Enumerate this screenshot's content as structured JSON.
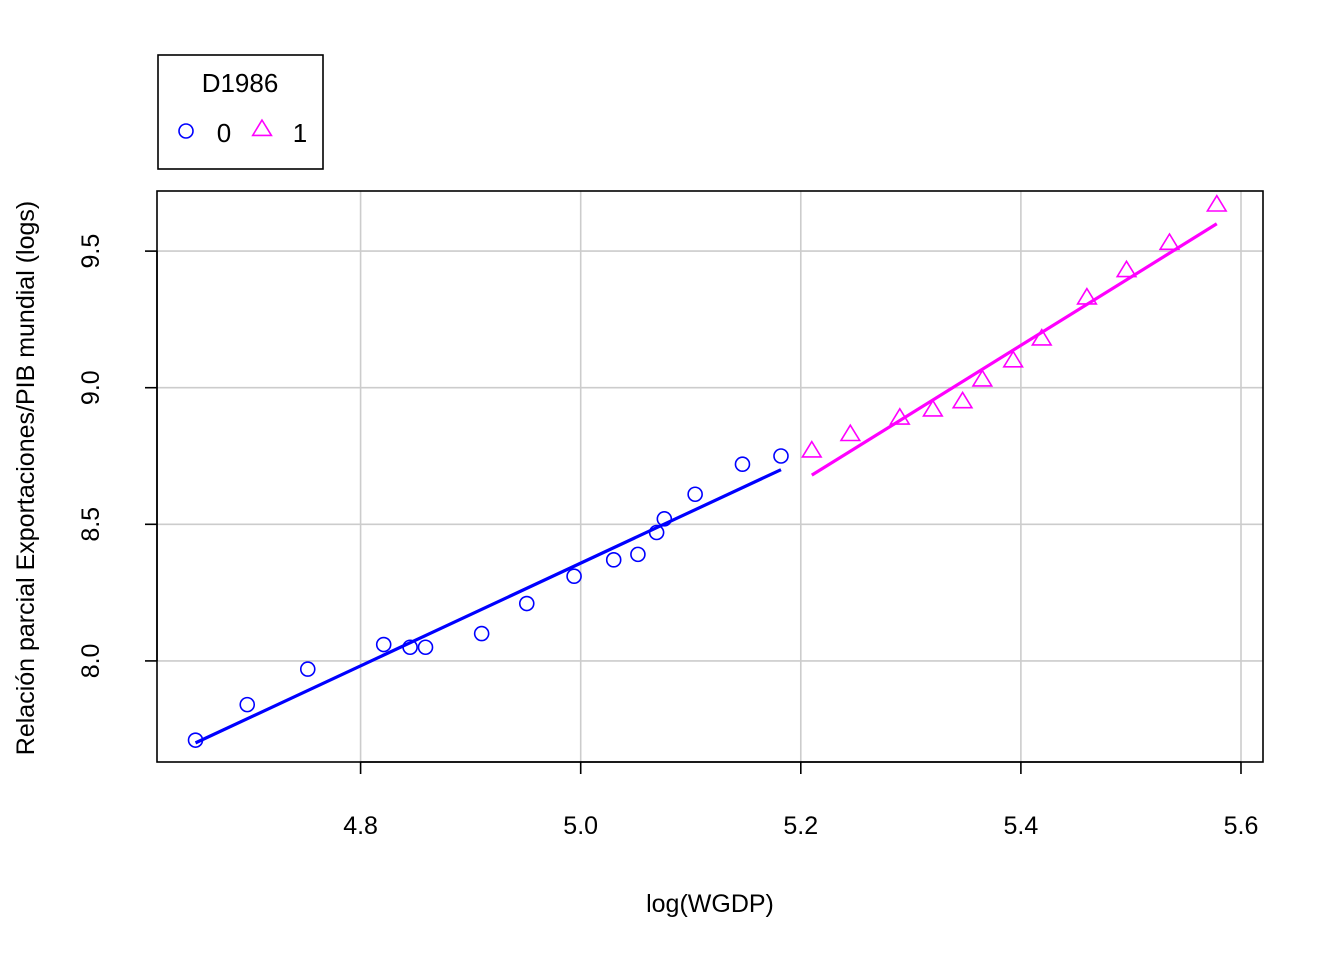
{
  "chart_data": {
    "type": "scatter",
    "title": "",
    "xlabel": "log(WGDP)",
    "ylabel": "Relación parcial Exportaciones/PIB mundial (logs)",
    "xlim": [
      4.615,
      5.62
    ],
    "ylim": [
      7.63,
      9.72
    ],
    "xticks": [
      "4.8",
      "5.0",
      "5.2",
      "5.4",
      "5.6"
    ],
    "yticks": [
      "8.0",
      "8.5",
      "9.0",
      "9.5"
    ],
    "grid": true,
    "legend": {
      "title": "D1986",
      "position": "top-left-outside",
      "entries": [
        "0",
        "1"
      ]
    },
    "series": [
      {
        "name": "0",
        "marker": "circle",
        "color": "#0000ff",
        "x": [
          4.65,
          4.697,
          4.752,
          4.821,
          4.845,
          4.859,
          4.91,
          4.951,
          4.994,
          5.03,
          5.052,
          5.069,
          5.076,
          5.104,
          5.147,
          5.182
        ],
        "y": [
          7.71,
          7.84,
          7.97,
          8.06,
          8.05,
          8.05,
          8.1,
          8.21,
          8.31,
          8.37,
          8.39,
          8.47,
          8.52,
          8.61,
          8.72,
          8.75
        ],
        "fit": {
          "x": [
            4.65,
            5.182
          ],
          "y": [
            7.7,
            8.7
          ]
        }
      },
      {
        "name": "1",
        "marker": "triangle",
        "color": "#ff00ff",
        "x": [
          5.21,
          5.245,
          5.29,
          5.32,
          5.347,
          5.365,
          5.393,
          5.419,
          5.46,
          5.496,
          5.535,
          5.578
        ],
        "y": [
          8.77,
          8.83,
          8.89,
          8.92,
          8.95,
          9.03,
          9.1,
          9.18,
          9.33,
          9.43,
          9.53,
          9.67
        ],
        "fit": {
          "x": [
            5.21,
            5.578
          ],
          "y": [
            8.68,
            9.6
          ]
        }
      }
    ]
  }
}
